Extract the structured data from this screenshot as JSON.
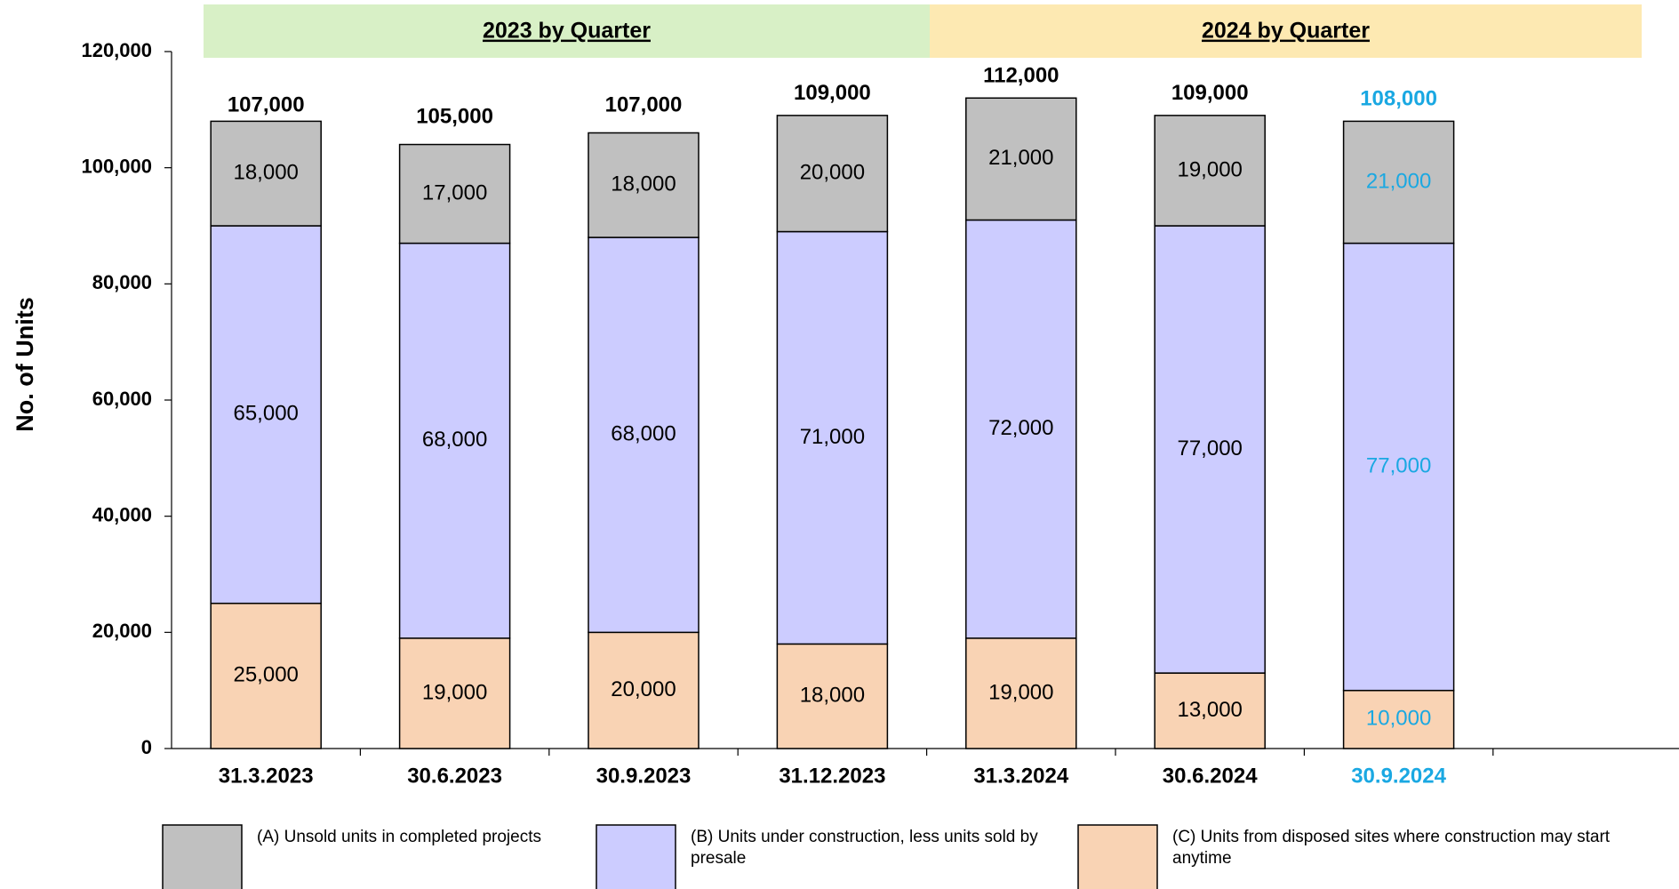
{
  "chart_data": {
    "type": "stacked_bar",
    "ylabel": "No. of Units",
    "categories": [
      "31.3.2023",
      "30.6.2023",
      "30.9.2023",
      "31.12.2023",
      "31.3.2024",
      "30.6.2024",
      "30.9.2024"
    ],
    "groups": [
      {
        "label": "2023 by Quarter",
        "color": "#d8f0c6"
      },
      {
        "label": "2024 by Quarter",
        "color": "#fde9b2"
      }
    ],
    "series": [
      {
        "name": "(C) Units from disposed sites where construction may start anytime",
        "color": "#f9d3b4",
        "values": [
          25000,
          19000,
          20000,
          18000,
          19000,
          13000,
          10000
        ],
        "value_labels": [
          "25,000",
          "19,000",
          "20,000",
          "18,000",
          "19,000",
          "13,000",
          "10,000"
        ]
      },
      {
        "name": "(B) Units under construction, less units sold by presale",
        "color": "#ccccff",
        "values": [
          65000,
          68000,
          68000,
          71000,
          72000,
          77000,
          77000
        ],
        "value_labels": [
          "65,000",
          "68,000",
          "68,000",
          "71,000",
          "72,000",
          "77,000",
          "77,000"
        ]
      },
      {
        "name": "(A) Unsold units in completed projects",
        "color": "#c0c0c0",
        "values": [
          18000,
          17000,
          18000,
          20000,
          21000,
          19000,
          21000
        ],
        "value_labels": [
          "18,000",
          "17,000",
          "18,000",
          "20,000",
          "21,000",
          "19,000",
          "21,000"
        ]
      }
    ],
    "totals": [
      107000,
      105000,
      107000,
      109000,
      112000,
      109000,
      108000
    ],
    "total_labels": [
      "107,000",
      "105,000",
      "107,000",
      "109,000",
      "112,000",
      "109,000",
      "108,000"
    ],
    "highlight": {
      "index": 6,
      "color": "#1aa8e2"
    },
    "ylim": [
      0,
      120000
    ],
    "yticks": [
      0,
      {
        "value": 20000,
        "label": "20,000"
      },
      {
        "value": 40000,
        "label": "40,000"
      },
      {
        "value": 60000,
        "label": "60,000"
      },
      {
        "value": 80000,
        "label": "80,000"
      },
      {
        "value": 100000,
        "label": "100,000"
      },
      {
        "value": 120000,
        "label": "120,000"
      }
    ]
  }
}
